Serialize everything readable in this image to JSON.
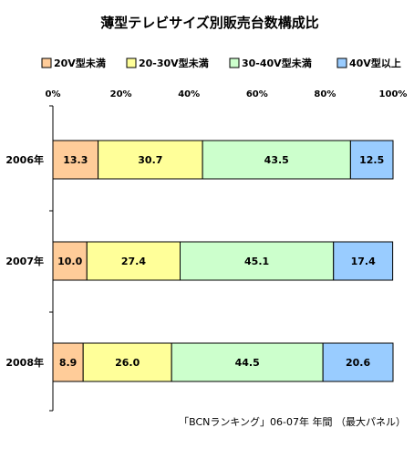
{
  "chart_data": {
    "type": "bar",
    "orientation": "horizontal",
    "stacked": true,
    "title": "薄型テレビサイズ別販売台数構成比",
    "categories": [
      "2006年",
      "2007年",
      "2008年"
    ],
    "series": [
      {
        "name": "20V型未満",
        "values": [
          13.3,
          10.0,
          8.9
        ],
        "labels": [
          "13.3",
          "10.0",
          "8.9"
        ],
        "color": "#FFCC99"
      },
      {
        "name": "20-30V型未満",
        "values": [
          30.7,
          27.4,
          26.0
        ],
        "labels": [
          "30.7",
          "27.4",
          "26.0"
        ],
        "color": "#FFFF99"
      },
      {
        "name": "30-40V型未満",
        "values": [
          43.5,
          45.1,
          44.5
        ],
        "labels": [
          "43.5",
          "45.1",
          "44.5"
        ],
        "color": "#CCFFCC"
      },
      {
        "name": "40V型以上",
        "values": [
          12.5,
          17.4,
          20.6
        ],
        "labels": [
          "12.5",
          "17.4",
          "20.6"
        ],
        "color": "#99CCFF"
      }
    ],
    "xlim": [
      0,
      100
    ],
    "ticks": [
      "0%",
      "20%",
      "40%",
      "60%",
      "80%",
      "100%"
    ],
    "legend_position": "top",
    "grid": false,
    "source_note": "「BCNランキング」06-07年 年間 （最大パネル）"
  }
}
